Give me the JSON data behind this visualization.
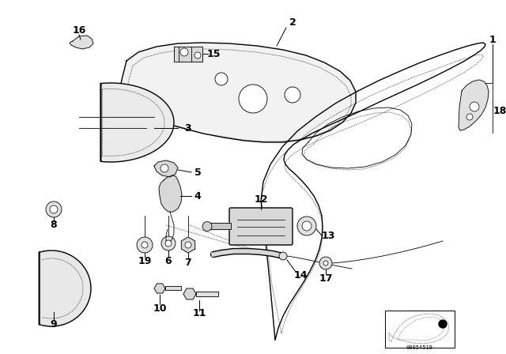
{
  "background_color": "#ffffff",
  "line_color": "#000000",
  "diagram_code": "00054519",
  "figsize": [
    6.4,
    4.48
  ],
  "dpi": 100
}
